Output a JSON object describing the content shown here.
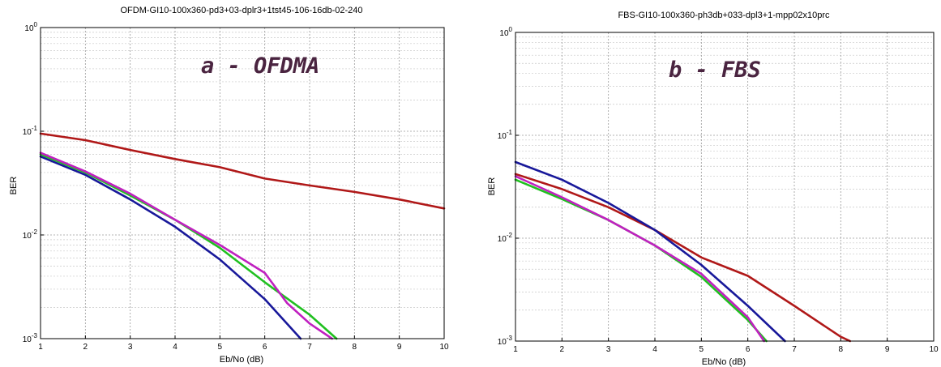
{
  "chart_data": [
    {
      "type": "line",
      "title": "OFDM-GI10-100x360-pd3+03-dplr3+1tst45-106-16db-02-240",
      "annotation": "a - OFDMA",
      "xlabel": "Eb/No (dB)",
      "ylabel": "BER",
      "xlim": [
        1,
        10
      ],
      "ylim": [
        0.001,
        1
      ],
      "yscale": "log",
      "grid": true,
      "x_ticks": [
        "1",
        "2",
        "3",
        "4",
        "5",
        "6",
        "7",
        "8",
        "9",
        "10"
      ],
      "y_ticks": [
        {
          "base": "10",
          "exp": "0"
        },
        {
          "base": "10",
          "exp": "-1"
        },
        {
          "base": "10",
          "exp": "-2"
        },
        {
          "base": "10",
          "exp": "-3"
        }
      ],
      "series": [
        {
          "color": "#b01818",
          "x": [
            1,
            2,
            3,
            4,
            5,
            6,
            7,
            8,
            9,
            10
          ],
          "y": [
            0.095,
            0.082,
            0.066,
            0.054,
            0.045,
            0.035,
            0.03,
            0.026,
            0.022,
            0.018
          ]
        },
        {
          "color": "#18189a",
          "x": [
            1,
            2,
            3,
            4,
            5,
            6,
            6.8
          ],
          "y": [
            0.057,
            0.038,
            0.022,
            0.012,
            0.0058,
            0.0024,
            0.001
          ]
        },
        {
          "color": "#20c020",
          "x": [
            1,
            2,
            3,
            4,
            5,
            6,
            7,
            7.6
          ],
          "y": [
            0.06,
            0.04,
            0.024,
            0.014,
            0.0075,
            0.0035,
            0.0017,
            0.001
          ]
        },
        {
          "color": "#c020c0",
          "x": [
            1,
            2,
            3,
            4,
            5,
            6,
            6.5,
            7,
            7.5
          ],
          "y": [
            0.062,
            0.041,
            0.025,
            0.014,
            0.008,
            0.0043,
            0.0022,
            0.0014,
            0.001
          ]
        }
      ]
    },
    {
      "type": "line",
      "title": "FBS-GI10-100x360-ph3db+033-dpl3+1-mpp02x10prc",
      "annotation": "b - FBS",
      "xlabel": "Eb/No (dB)",
      "ylabel": "BER",
      "xlim": [
        1,
        10
      ],
      "ylim": [
        0.001,
        1
      ],
      "yscale": "log",
      "grid": true,
      "x_ticks": [
        "1",
        "2",
        "3",
        "4",
        "5",
        "6",
        "7",
        "8",
        "9",
        "10"
      ],
      "y_ticks": [
        {
          "base": "10",
          "exp": "0"
        },
        {
          "base": "10",
          "exp": "-1"
        },
        {
          "base": "10",
          "exp": "-2"
        },
        {
          "base": "10",
          "exp": "-3"
        }
      ],
      "series": [
        {
          "color": "#b01818",
          "x": [
            1,
            2,
            3,
            4,
            5,
            6,
            7,
            8,
            8.2
          ],
          "y": [
            0.042,
            0.03,
            0.02,
            0.012,
            0.0065,
            0.0043,
            0.0022,
            0.0011,
            0.001
          ]
        },
        {
          "color": "#18189a",
          "x": [
            1,
            2,
            3,
            4,
            5,
            6,
            6.8
          ],
          "y": [
            0.055,
            0.037,
            0.022,
            0.012,
            0.0055,
            0.0022,
            0.001
          ]
        },
        {
          "color": "#20c020",
          "x": [
            1,
            2,
            3,
            4,
            5,
            6,
            6.4
          ],
          "y": [
            0.037,
            0.024,
            0.015,
            0.0085,
            0.0042,
            0.0016,
            0.001
          ]
        },
        {
          "color": "#c020c0",
          "x": [
            1,
            2,
            3,
            4,
            5,
            6,
            6.35
          ],
          "y": [
            0.04,
            0.025,
            0.015,
            0.0085,
            0.0045,
            0.0017,
            0.001
          ]
        }
      ]
    }
  ]
}
